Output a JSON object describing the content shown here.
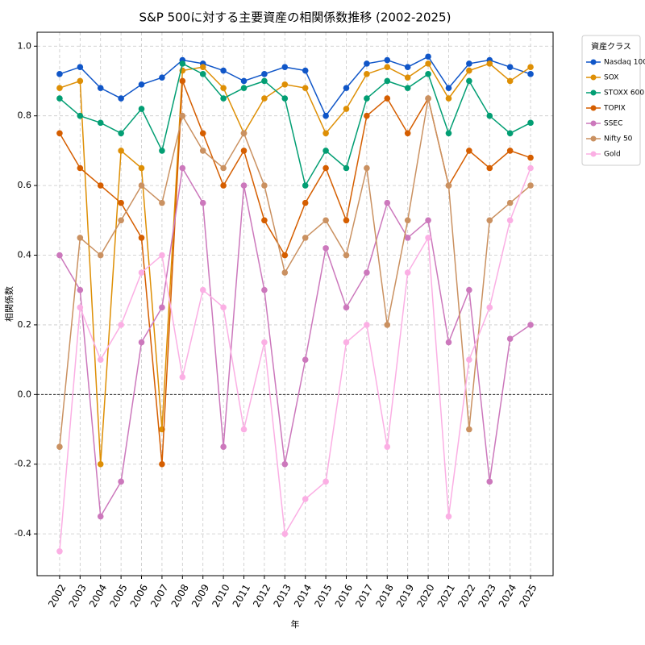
{
  "chart_data": {
    "type": "line",
    "title": "S&P 500に対する主要資産の相関係数推移 (2002-2025)",
    "xlabel": "年",
    "ylabel": "相関係数",
    "legend_title": "資産クラス",
    "legend_loc": "outside",
    "grid": true,
    "zero_line": true,
    "x": [
      2002,
      2003,
      2004,
      2005,
      2006,
      2007,
      2008,
      2009,
      2010,
      2011,
      2012,
      2013,
      2014,
      2015,
      2016,
      2017,
      2018,
      2019,
      2020,
      2021,
      2022,
      2023,
      2024,
      2025
    ],
    "xlim": [
      2000.9,
      2026.1
    ],
    "xticks": [
      2002,
      2003,
      2004,
      2005,
      2006,
      2007,
      2008,
      2009,
      2010,
      2011,
      2012,
      2013,
      2014,
      2015,
      2016,
      2017,
      2018,
      2019,
      2020,
      2021,
      2022,
      2023,
      2024,
      2025
    ],
    "ylim": [
      -0.52,
      1.04
    ],
    "yticks": [
      -0.4,
      -0.2,
      {
        "value": 0,
        "label": "0.0"
      },
      0.2,
      0.4,
      0.6,
      0.8,
      {
        "value": 1,
        "label": "1.0"
      }
    ],
    "series": [
      {
        "name": "Nasdaq 100",
        "color": "#1056c8",
        "values": [
          0.92,
          0.94,
          0.88,
          0.85,
          0.89,
          0.91,
          0.96,
          0.95,
          0.93,
          0.9,
          0.92,
          0.94,
          0.93,
          0.8,
          0.88,
          0.95,
          0.96,
          0.94,
          0.97,
          0.88,
          0.95,
          0.96,
          0.94,
          0.92
        ]
      },
      {
        "name": "SOX",
        "color": "#de8f05",
        "values": [
          0.88,
          0.9,
          -0.2,
          0.7,
          0.65,
          -0.1,
          0.93,
          0.94,
          0.88,
          0.75,
          0.85,
          0.89,
          0.88,
          0.75,
          0.82,
          0.92,
          0.94,
          0.91,
          0.95,
          0.85,
          0.93,
          0.95,
          0.9,
          0.94
        ]
      },
      {
        "name": "STOXX 600",
        "color": "#029e73",
        "values": [
          0.85,
          0.8,
          0.78,
          0.75,
          0.82,
          0.7,
          0.95,
          0.92,
          0.85,
          0.88,
          0.9,
          0.85,
          0.6,
          0.7,
          0.65,
          0.85,
          0.9,
          0.88,
          0.92,
          0.75,
          0.9,
          0.8,
          0.75,
          0.78
        ]
      },
      {
        "name": "TOPIX",
        "color": "#d55e00",
        "values": [
          0.75,
          0.65,
          0.6,
          0.55,
          0.45,
          -0.2,
          0.9,
          0.75,
          0.6,
          0.7,
          0.5,
          0.4,
          0.55,
          0.65,
          0.5,
          0.8,
          0.85,
          0.75,
          0.85,
          0.6,
          0.7,
          0.65,
          0.7,
          0.68
        ]
      },
      {
        "name": "SSEC",
        "color": "#cc78bc",
        "values": [
          0.4,
          0.3,
          -0.35,
          -0.25,
          0.15,
          0.25,
          0.65,
          0.55,
          -0.15,
          0.6,
          0.3,
          -0.2,
          0.1,
          0.42,
          0.25,
          0.35,
          0.55,
          0.45,
          0.5,
          0.15,
          0.3,
          -0.25,
          0.16,
          0.2
        ]
      },
      {
        "name": "Nifty 50",
        "color": "#ca9161",
        "values": [
          -0.15,
          0.45,
          0.4,
          0.5,
          0.6,
          0.55,
          0.8,
          0.7,
          0.65,
          0.75,
          0.6,
          0.35,
          0.45,
          0.5,
          0.4,
          0.65,
          0.2,
          0.5,
          0.85,
          0.6,
          -0.1,
          0.5,
          0.55,
          0.6
        ]
      },
      {
        "name": "Gold",
        "color": "#fbafe4",
        "values": [
          -0.45,
          0.25,
          0.1,
          0.2,
          0.35,
          0.4,
          0.05,
          0.3,
          0.25,
          -0.1,
          0.15,
          -0.4,
          -0.3,
          -0.25,
          0.15,
          0.2,
          -0.15,
          0.35,
          0.45,
          -0.35,
          0.1,
          0.25,
          0.5,
          0.65
        ]
      }
    ]
  }
}
